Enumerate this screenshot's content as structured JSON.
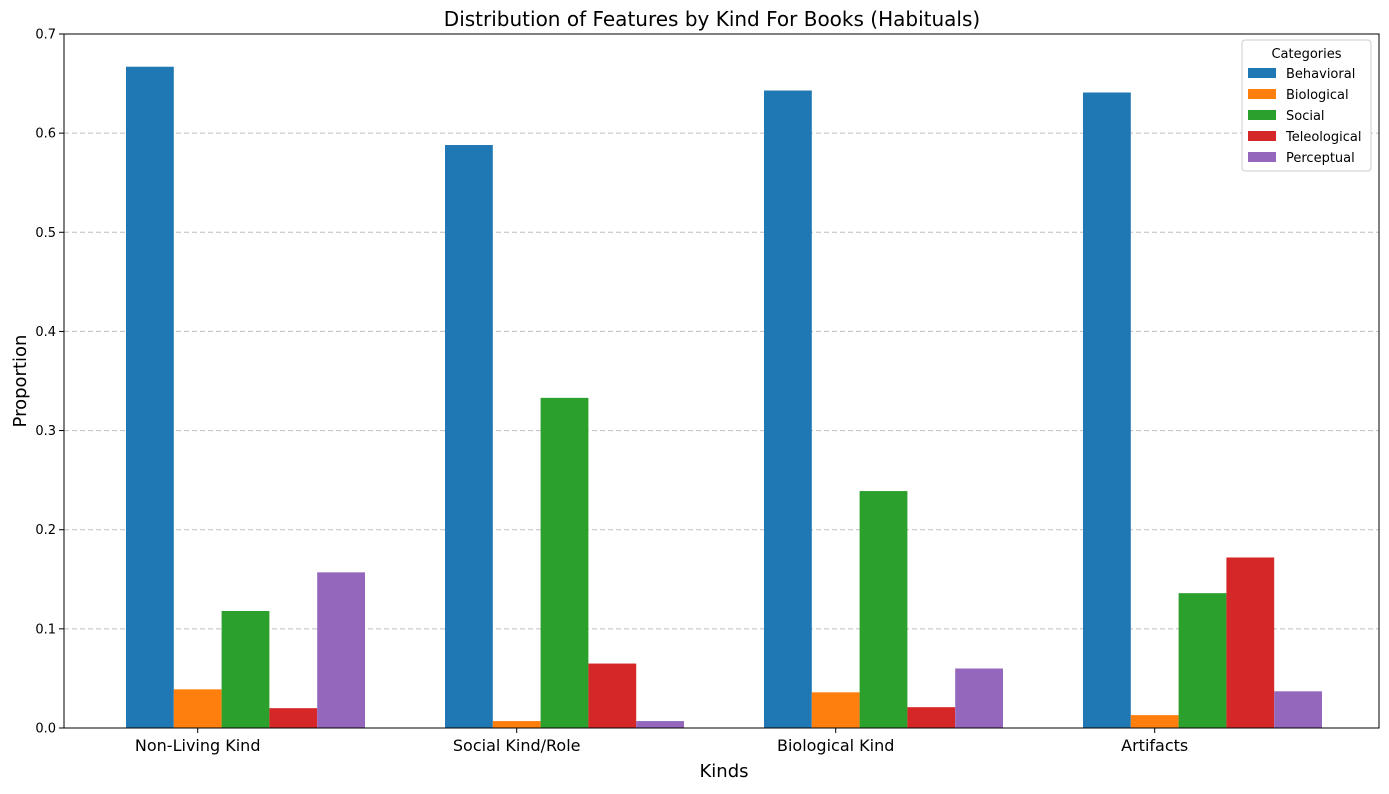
{
  "chart_data": {
    "type": "bar",
    "title": "Distribution of Features by Kind For Books (Habituals)",
    "xlabel": "Kinds",
    "ylabel": "Proportion",
    "categories": [
      "Non-Living Kind",
      "Social Kind/Role",
      "Biological Kind",
      "Artifacts"
    ],
    "ylim": [
      0,
      0.7
    ],
    "yticks": [
      "0.0",
      "0.1",
      "0.2",
      "0.3",
      "0.4",
      "0.5",
      "0.6",
      "0.7"
    ],
    "grid": "horizontal dashed",
    "legend": {
      "title": "Categories",
      "placement": "top-right"
    },
    "series": [
      {
        "name": "Behavioral",
        "color": "#1f77b4",
        "values": [
          0.667,
          0.588,
          0.643,
          0.641
        ]
      },
      {
        "name": "Biological",
        "color": "#ff7f0e",
        "values": [
          0.039,
          0.007,
          0.036,
          0.013
        ]
      },
      {
        "name": "Social",
        "color": "#2ca02c",
        "values": [
          0.118,
          0.333,
          0.239,
          0.136
        ]
      },
      {
        "name": "Teleological",
        "color": "#d62728",
        "values": [
          0.02,
          0.065,
          0.021,
          0.172
        ]
      },
      {
        "name": "Perceptual",
        "color": "#9467bd",
        "values": [
          0.157,
          0.007,
          0.06,
          0.037
        ]
      }
    ]
  }
}
